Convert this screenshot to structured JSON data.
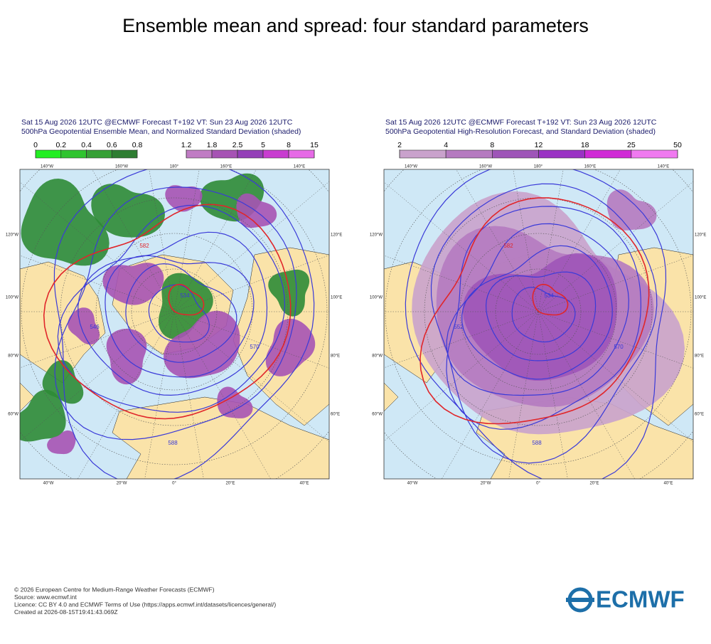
{
  "title": "Ensemble mean and spread: four standard parameters",
  "panels": [
    {
      "header": [
        "Sat 15 Aug 2026 12UTC @ECMWF Forecast T+192 VT: Sun 23 Aug 2026 12UTC",
        "500hPa Geopotential Ensemble Mean, and Normalized Standard Deviation (shaded)"
      ],
      "colorbars": [
        {
          "ticks": [
            0,
            0.2,
            0.4,
            0.6,
            0.8
          ],
          "colors": [
            "#22ee22",
            "#2fc42f",
            "#36a036",
            "#2e7d32"
          ]
        },
        {
          "ticks": [
            1.2,
            1.8,
            2.5,
            5,
            8,
            15
          ],
          "colors": [
            "#c07cc4",
            "#a653b4",
            "#9440b8",
            "#c83cd0",
            "#e66ae6"
          ]
        }
      ],
      "border_labels": {
        "top": [
          "140°W",
          "160°W",
          "180°",
          "160°E",
          "140°E"
        ],
        "left": [
          "120°W",
          "100°W",
          "80°W",
          "60°W"
        ],
        "right": [
          "120°E",
          "100°E",
          "80°E",
          "60°E"
        ],
        "bottom": [
          "40°W",
          "20°W",
          "0°",
          "20°E",
          "40°E"
        ]
      },
      "contour_labels": [
        "582",
        "534",
        "546",
        "570",
        "588"
      ]
    },
    {
      "header": [
        "Sat 15 Aug 2026 12UTC @ECMWF Forecast T+192 VT: Sun 23 Aug 2026 12UTC",
        "500hPa Geopotential High-Resolution Forecast, and Standard Deviation (shaded)"
      ],
      "colorbars": [
        {
          "ticks": [
            2,
            4,
            8,
            12,
            18,
            25,
            50
          ],
          "colors": [
            "#c9a2cc",
            "#b57ac0",
            "#9e55b8",
            "#9a33c4",
            "#d02ad6",
            "#f07af0"
          ]
        }
      ],
      "border_labels": {
        "top": [
          "140°W",
          "160°W",
          "180°",
          "160°E",
          "140°E"
        ],
        "left": [
          "120°W",
          "100°W",
          "80°W",
          "60°W"
        ],
        "right": [
          "120°E",
          "100°E",
          "80°E",
          "60°E"
        ],
        "bottom": [
          "40°W",
          "20°W",
          "0°",
          "20°E",
          "40°E"
        ]
      },
      "contour_labels": [
        "582",
        "534",
        "552",
        "570",
        "588"
      ]
    }
  ],
  "footer": [
    "© 2026 European Centre for Medium-Range Weather Forecasts (ECMWF)",
    "Source: www.ecmwf.int",
    "Licence: CC BY 4.0 and ECMWF Terms of Use (https://apps.ecmwf.int/datasets/licences/general/)",
    "Created at 2026-08-15T19:41:43.069Z"
  ],
  "logo": "ECMWF"
}
